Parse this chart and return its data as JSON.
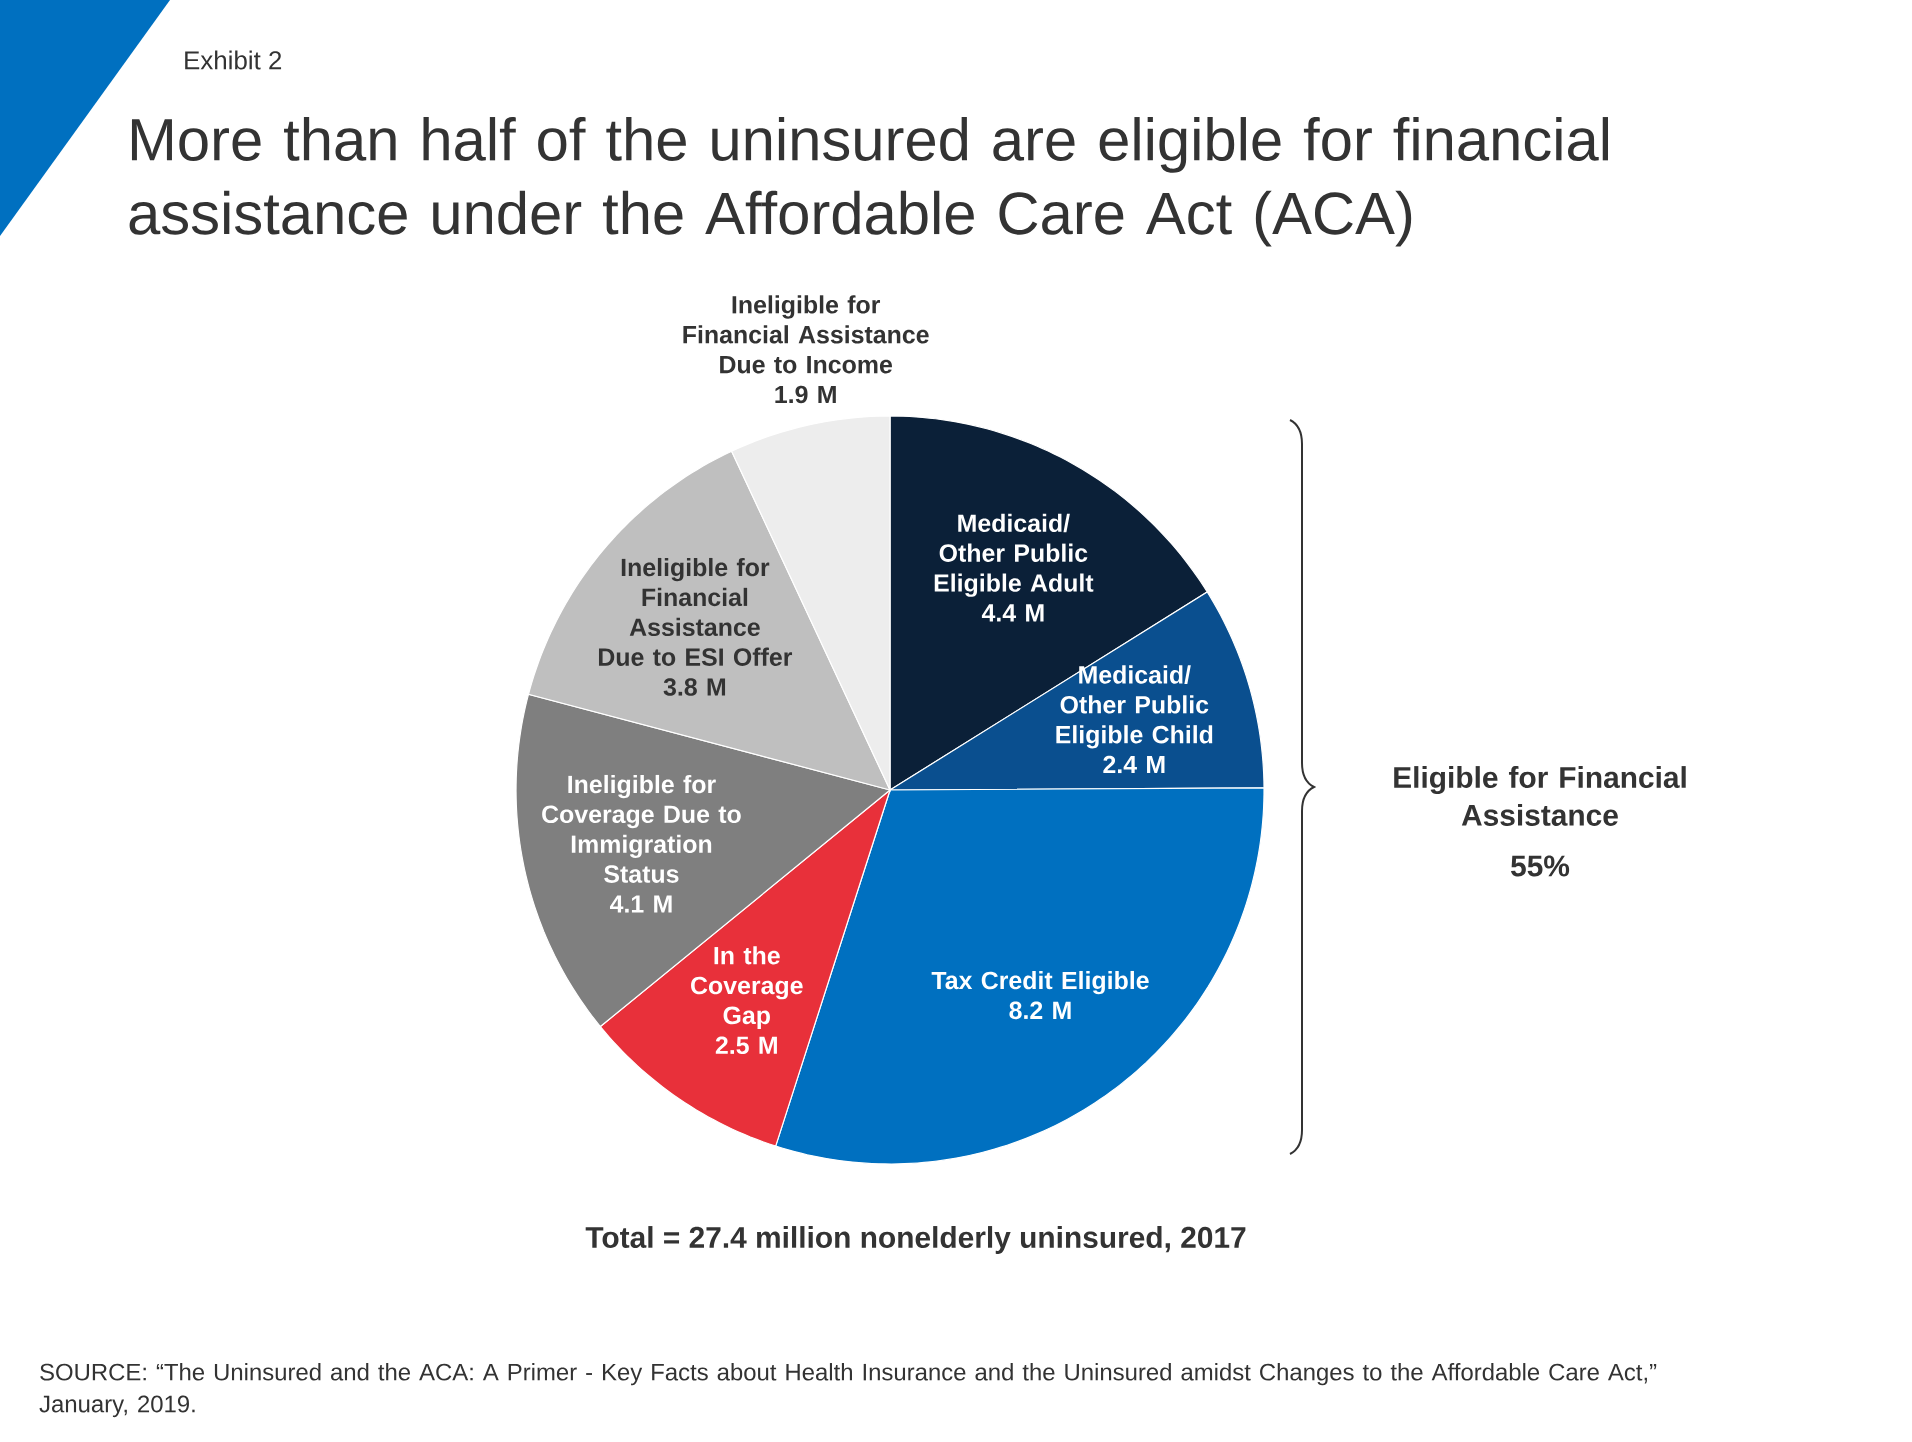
{
  "chart_data": {
    "type": "pie",
    "title": "More than half of the uninsured are eligible for financial assistance under the Affordable Care Act (ACA)",
    "categories": [
      "Medicaid/ Other Public Eligible Adult",
      "Medicaid/ Other Public Eligible Child",
      "Tax Credit Eligible",
      "In the Coverage Gap",
      "Ineligible for Coverage Due to Immigration Status",
      "Ineligible for Financial Assistance Due to ESI Offer",
      "Ineligible for Financial Assistance Due to Income"
    ],
    "values": [
      4.4,
      2.4,
      8.2,
      2.5,
      4.1,
      3.8,
      1.9
    ],
    "value_labels": [
      "4.4 M",
      "2.4 M",
      "8.2 M",
      "2.5 M",
      "4.1 M",
      "3.8 M",
      "1.9 M"
    ],
    "colors": [
      "#0b2038",
      "#0a4f8f",
      "#0070c0",
      "#e8303a",
      "#7f7f7f",
      "#bfbfbf",
      "#ededed"
    ],
    "annotations": [
      "Exhibit 2",
      "Eligible for Financial Assistance",
      "55%",
      "Total = 27.4 million nonelderly uninsured, 2017",
      "SOURCE: “The Uninsured and the ACA: A Primer - Key Facts about Health Insurance and the Uninsured amidst Changes to the Affordable Care Act,” January, 2019."
    ]
  }
}
